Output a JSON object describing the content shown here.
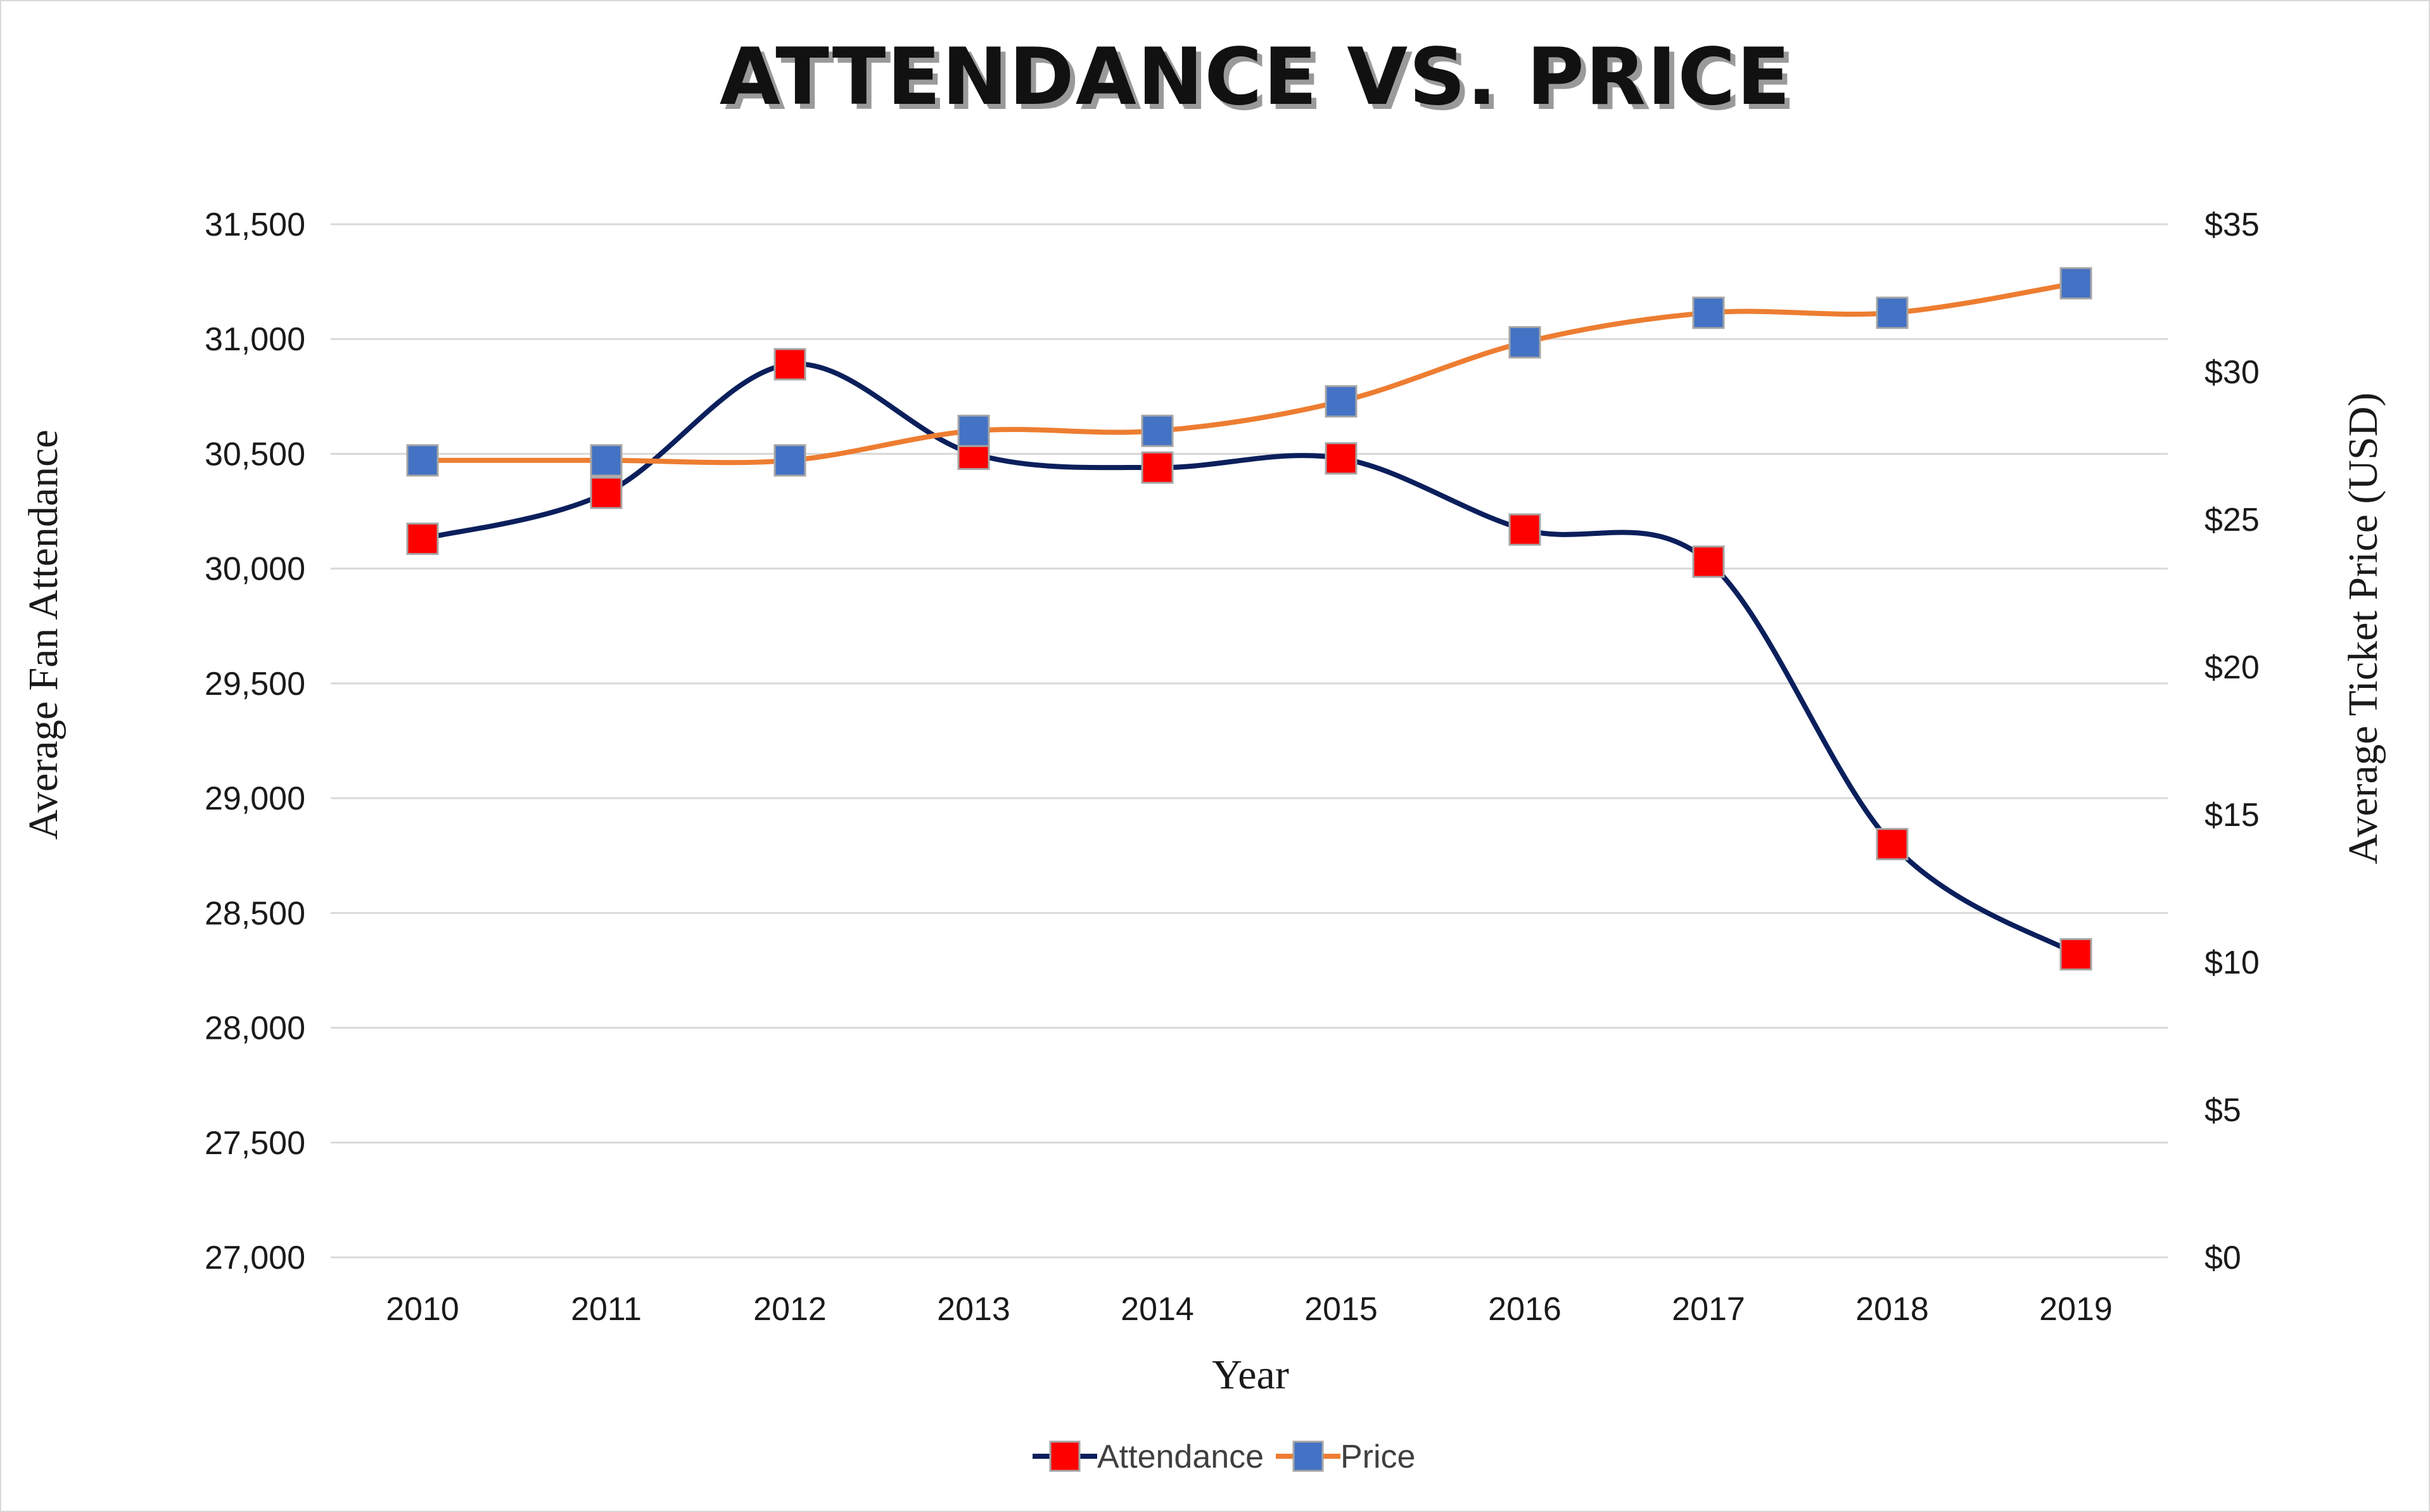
{
  "chart_data": {
    "type": "line",
    "title": "ATTENDANCE VS. PRICE",
    "xlabel": "Year",
    "ylabel": "Average Fan Attendance",
    "y2label": "Average Ticket Price (USD)",
    "categories": [
      "2010",
      "2011",
      "2012",
      "2013",
      "2014",
      "2015",
      "2016",
      "2017",
      "2018",
      "2019"
    ],
    "ylim": [
      27000,
      31500
    ],
    "y2lim": [
      0,
      35
    ],
    "y_ticks": [
      "27,000",
      "27,500",
      "28,000",
      "28,500",
      "29,000",
      "29,500",
      "30,000",
      "30,500",
      "31,000",
      "31,500"
    ],
    "y_tick_values": [
      27000,
      27500,
      28000,
      28500,
      29000,
      29500,
      30000,
      30500,
      31000,
      31500
    ],
    "y2_ticks": [
      "$0",
      "$5",
      "$10",
      "$15",
      "$20",
      "$25",
      "$30",
      "$35"
    ],
    "y2_tick_values": [
      0,
      5,
      10,
      15,
      20,
      25,
      30,
      35
    ],
    "grid": true,
    "legend_position": "bottom",
    "series": [
      {
        "name": "Attendance",
        "axis": "left",
        "line_color": "#0b1f5c",
        "marker_color": "#ff0000",
        "values": [
          30130,
          30330,
          30890,
          30500,
          30440,
          30480,
          30170,
          30030,
          28800,
          28320
        ]
      },
      {
        "name": "Price",
        "axis": "right",
        "line_color": "#ed7d31",
        "marker_color": "#4472c4",
        "values": [
          27,
          27,
          27,
          28,
          28,
          29,
          31,
          32,
          32,
          33
        ]
      }
    ]
  },
  "colors": {
    "gridline": "#d9d9d9",
    "marker_border": "#a5a5a5",
    "border": "#d9d9d9"
  }
}
